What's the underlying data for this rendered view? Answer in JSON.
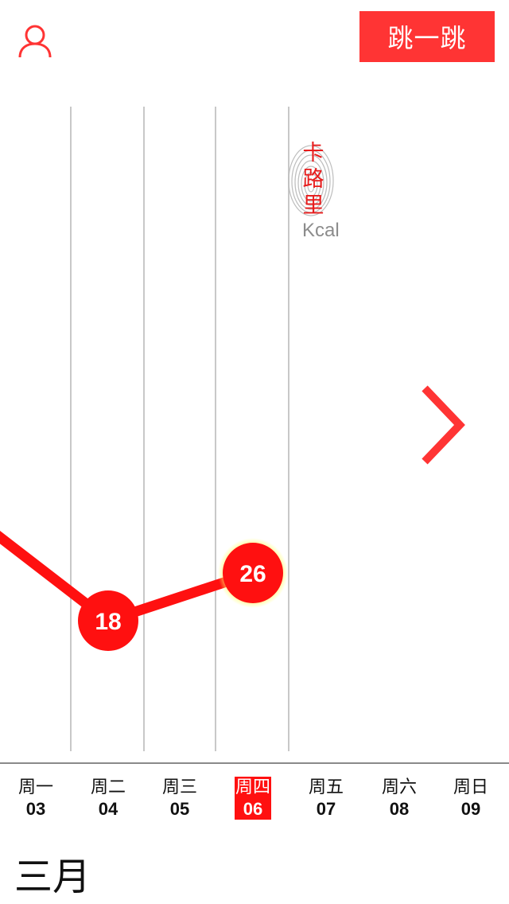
{
  "header": {
    "user_icon": "user-icon",
    "jump_button_label": "跳一跳"
  },
  "calorie_stamp": {
    "label": "卡路里",
    "unit": "Kcal"
  },
  "navigation": {
    "next_icon": "chevron-right-icon"
  },
  "chart_data": {
    "type": "line",
    "x": [
      "03",
      "04",
      "05",
      "06"
    ],
    "series": [
      {
        "values": [
          null,
          18,
          null,
          26
        ],
        "point_labels": [
          "",
          "18",
          "",
          "26"
        ]
      }
    ],
    "highlight_index": 3,
    "color": "#ff1010"
  },
  "days": [
    {
      "name": "周一",
      "date": "03",
      "selected": false
    },
    {
      "name": "周二",
      "date": "04",
      "selected": false
    },
    {
      "name": "周三",
      "date": "05",
      "selected": false
    },
    {
      "name": "周四",
      "date": "06",
      "selected": true
    },
    {
      "name": "周五",
      "date": "07",
      "selected": false
    },
    {
      "name": "周六",
      "date": "08",
      "selected": false
    },
    {
      "name": "周日",
      "date": "09",
      "selected": false
    }
  ],
  "month": "三月",
  "colors": {
    "accent": "#ff3434",
    "line": "#ff1010",
    "grid": "#c8c8c8",
    "glow": "#ffff66"
  }
}
